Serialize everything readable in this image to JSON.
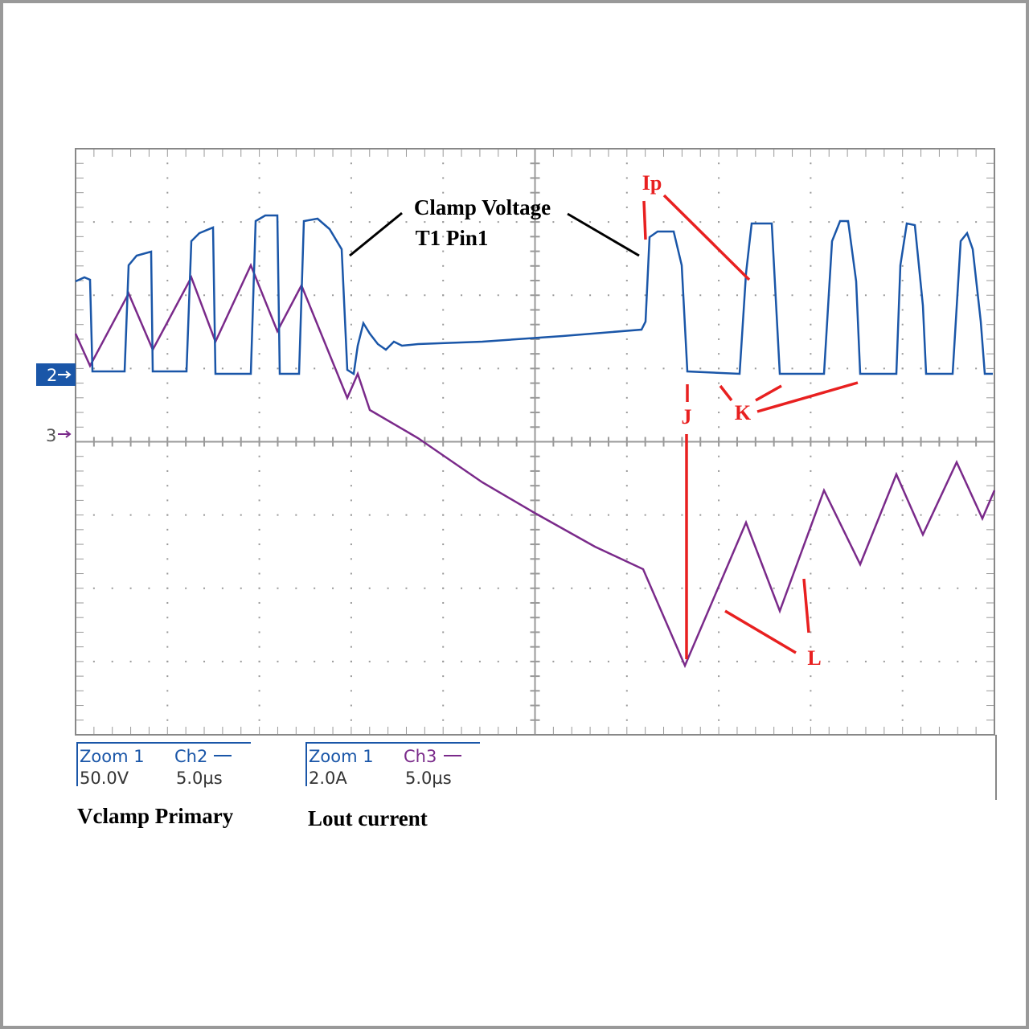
{
  "annotations": {
    "clamp_voltage": "Clamp Voltage",
    "pin": "T1 Pin1",
    "ip": "Ip",
    "j": "J",
    "k": "K",
    "l": "L"
  },
  "markers": {
    "ch2": "2",
    "ch3": "3"
  },
  "readouts": [
    {
      "zoom": "Zoom 1",
      "channel": "Ch2",
      "scale": "50.0V",
      "time": "5.0µs",
      "caption": "Vclamp Primary"
    },
    {
      "zoom": "Zoom 1",
      "channel": "Ch3",
      "scale": "2.0A",
      "time": "5.0µs",
      "caption": "Lout current"
    }
  ]
}
